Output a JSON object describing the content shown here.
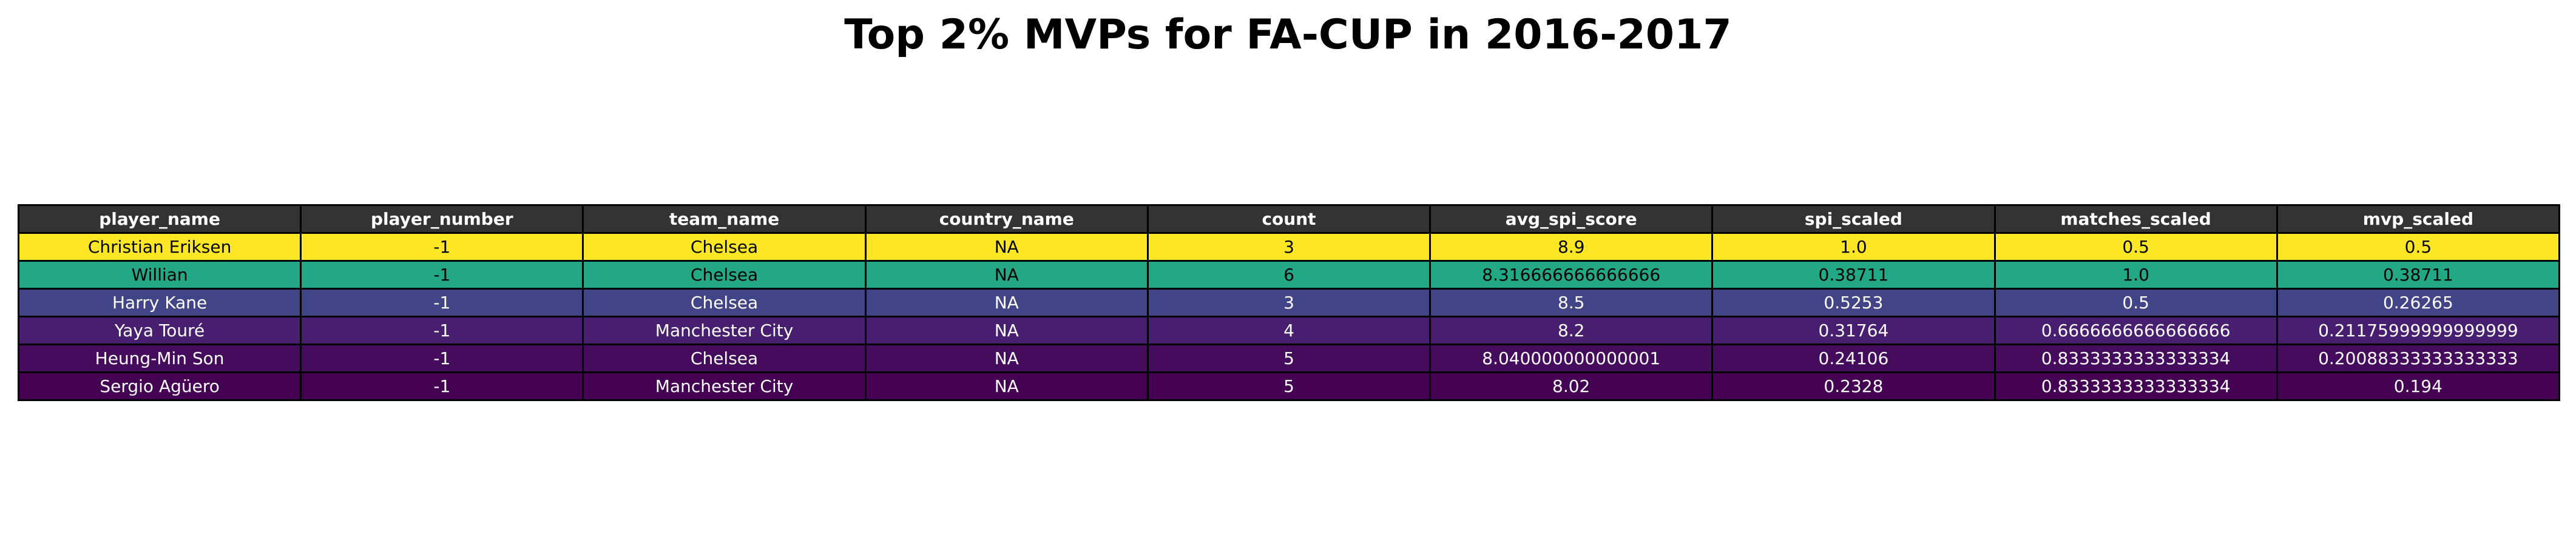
{
  "title": "Top 2% MVPs for FA-CUP in 2016-2017",
  "chart_data": {
    "type": "table",
    "title": "Top 2% MVPs for FA-CUP in 2016-2017",
    "columns": [
      "player_name",
      "player_number",
      "team_name",
      "country_name",
      "count",
      "avg_spi_score",
      "spi_scaled",
      "matches_scaled",
      "mvp_scaled"
    ],
    "rows": [
      [
        "Christian Eriksen",
        "-1",
        "Chelsea",
        "NA",
        "3",
        "8.9",
        "1.0",
        "0.5",
        "0.5"
      ],
      [
        "Willian",
        "-1",
        "Chelsea",
        "NA",
        "6",
        "8.316666666666666",
        "0.38711",
        "1.0",
        "0.38711"
      ],
      [
        "Harry Kane",
        "-1",
        "Chelsea",
        "NA",
        "3",
        "8.5",
        "0.5253",
        "0.5",
        "0.26265"
      ],
      [
        "Yaya Touré",
        "-1",
        "Manchester City",
        "NA",
        "4",
        "8.2",
        "0.31764",
        "0.6666666666666666",
        "0.21175999999999999"
      ],
      [
        "Heung-Min Son",
        "-1",
        "Chelsea",
        "NA",
        "5",
        "8.040000000000001",
        "0.24106",
        "0.8333333333333334",
        "0.20088333333333333"
      ],
      [
        "Sergio Agüero",
        "-1",
        "Manchester City",
        "NA",
        "5",
        "8.02",
        "0.2328",
        "0.8333333333333334",
        "0.194"
      ]
    ],
    "row_colors": [
      "#fde725",
      "#22a884",
      "#414487",
      "#481f70",
      "#450c5d",
      "#440154"
    ],
    "row_text_colors": [
      "#000000",
      "#000000",
      "#ffffff",
      "#ffffff",
      "#ffffff",
      "#ffffff"
    ],
    "header_background": "#333333",
    "header_text_color": "#ffffff",
    "colormap": "viridis",
    "color_by": "mvp_scaled"
  }
}
